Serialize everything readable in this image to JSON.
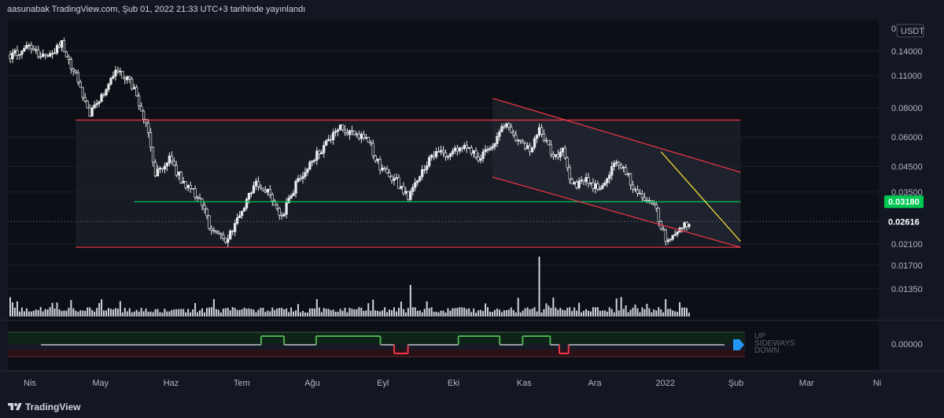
{
  "header": {
    "published": "aasunabak TradingView.com, Şub 01, 2022 21:33 UTC+3 tarihinde yayınlandı"
  },
  "footer": {
    "brand": "TradingView"
  },
  "chart_data": {
    "type": "candlestick",
    "currency": "USDT",
    "x_axis": {
      "labels": [
        "Nis",
        "May",
        "Haz",
        "Tem",
        "Ağu",
        "Eyl",
        "Eki",
        "Kas",
        "Ara",
        "2022",
        "Şub",
        "Mar",
        "Ni"
      ]
    },
    "y_axis": {
      "scale": "log",
      "range": [
        0.0121,
        0.175
      ],
      "ticks": [
        "0.14000",
        "0.11000",
        "0.08000",
        "0.06000",
        "0.04500",
        "0.03500",
        "0.02100",
        "0.01700",
        "0.01350"
      ],
      "top_partial_label": "0"
    },
    "last_price": "0.02616",
    "level_labels": [
      {
        "text": "0.03180",
        "color": "#00c853"
      }
    ],
    "price_path": [
      {
        "t": 0,
        "p": 0.135
      },
      {
        "t": 4,
        "p": 0.145
      },
      {
        "t": 8,
        "p": 0.128
      },
      {
        "t": 11,
        "p": 0.15
      },
      {
        "t": 14,
        "p": 0.11
      },
      {
        "t": 17,
        "p": 0.075
      },
      {
        "t": 20,
        "p": 0.092
      },
      {
        "t": 23,
        "p": 0.118
      },
      {
        "t": 26,
        "p": 0.1
      },
      {
        "t": 29,
        "p": 0.07
      },
      {
        "t": 31,
        "p": 0.042
      },
      {
        "t": 34,
        "p": 0.048
      },
      {
        "t": 37,
        "p": 0.038
      },
      {
        "t": 40,
        "p": 0.034
      },
      {
        "t": 43,
        "p": 0.024
      },
      {
        "t": 46,
        "p": 0.022
      },
      {
        "t": 49,
        "p": 0.027
      },
      {
        "t": 52,
        "p": 0.038
      },
      {
        "t": 55,
        "p": 0.036
      },
      {
        "t": 58,
        "p": 0.027
      },
      {
        "t": 61,
        "p": 0.038
      },
      {
        "t": 64,
        "p": 0.047
      },
      {
        "t": 67,
        "p": 0.055
      },
      {
        "t": 70,
        "p": 0.066
      },
      {
        "t": 73,
        "p": 0.062
      },
      {
        "t": 76,
        "p": 0.06
      },
      {
        "t": 79,
        "p": 0.045
      },
      {
        "t": 82,
        "p": 0.04
      },
      {
        "t": 85,
        "p": 0.033
      },
      {
        "t": 88,
        "p": 0.044
      },
      {
        "t": 91,
        "p": 0.053
      },
      {
        "t": 94,
        "p": 0.05
      },
      {
        "t": 97,
        "p": 0.056
      },
      {
        "t": 100,
        "p": 0.049
      },
      {
        "t": 103,
        "p": 0.056
      },
      {
        "t": 106,
        "p": 0.071
      },
      {
        "t": 108,
        "p": 0.06
      },
      {
        "t": 111,
        "p": 0.052
      },
      {
        "t": 113,
        "p": 0.066
      },
      {
        "t": 116,
        "p": 0.05
      },
      {
        "t": 118,
        "p": 0.052
      },
      {
        "t": 120,
        "p": 0.037
      },
      {
        "t": 123,
        "p": 0.039
      },
      {
        "t": 126,
        "p": 0.036
      },
      {
        "t": 129,
        "p": 0.047
      },
      {
        "t": 131,
        "p": 0.045
      },
      {
        "t": 133,
        "p": 0.036
      },
      {
        "t": 135,
        "p": 0.034
      },
      {
        "t": 138,
        "p": 0.029
      },
      {
        "t": 140,
        "p": 0.022
      },
      {
        "t": 142,
        "p": 0.023
      },
      {
        "t": 145,
        "p": 0.026
      }
    ],
    "volume_spikes": [
      {
        "t": 85.5,
        "v": 1.0
      },
      {
        "t": 113,
        "v": 1.9
      },
      {
        "t": 140,
        "v": 0.55
      },
      {
        "t": 143,
        "v": 0.45
      }
    ],
    "drawings": [
      {
        "kind": "line",
        "color": "#f23645",
        "from": {
          "t": 14,
          "p": 0.071
        },
        "to": {
          "t": 156,
          "p": 0.071
        }
      },
      {
        "kind": "line",
        "color": "#f23645",
        "from": {
          "t": 14,
          "p": 0.0203
        },
        "to": {
          "t": 156,
          "p": 0.0203
        }
      },
      {
        "kind": "line",
        "color": "#00c853",
        "from": {
          "t": 26.5,
          "p": 0.0318
        },
        "to": {
          "t": 156,
          "p": 0.0318
        }
      },
      {
        "kind": "line",
        "color": "#f23645",
        "from": {
          "t": 103,
          "p": 0.088
        },
        "to": {
          "t": 156,
          "p": 0.0425
        }
      },
      {
        "kind": "line",
        "color": "#f23645",
        "from": {
          "t": 103,
          "p": 0.0405
        },
        "to": {
          "t": 156,
          "p": 0.0203
        }
      },
      {
        "kind": "line",
        "color": "#ffeb3b",
        "from": {
          "t": 139,
          "p": 0.052
        },
        "to": {
          "t": 156,
          "p": 0.0215
        }
      }
    ],
    "rectangles": [
      {
        "from": {
          "t": 14,
          "p": 0.071
        },
        "to": {
          "t": 156,
          "p": 0.0203
        }
      }
    ],
    "oscillator": {
      "value_label": "0.00000",
      "legend": [
        "UP",
        "SIDEWAYS",
        "DOWN"
      ],
      "states": [
        {
          "t0": 0,
          "t1": 48,
          "s": 0
        },
        {
          "t0": 48,
          "t1": 53,
          "s": 1
        },
        {
          "t0": 53,
          "t1": 60,
          "s": 0
        },
        {
          "t0": 60,
          "t1": 74,
          "s": 1
        },
        {
          "t0": 74,
          "t1": 77,
          "s": 0
        },
        {
          "t0": 77,
          "t1": 80,
          "s": -1
        },
        {
          "t0": 80,
          "t1": 91,
          "s": 0
        },
        {
          "t0": 91,
          "t1": 100,
          "s": 1
        },
        {
          "t0": 100,
          "t1": 105,
          "s": 0
        },
        {
          "t0": 105,
          "t1": 111,
          "s": 1
        },
        {
          "t0": 111,
          "t1": 113,
          "s": 0
        },
        {
          "t0": 113,
          "t1": 115,
          "s": -1
        },
        {
          "t0": 115,
          "t1": 149,
          "s": 0
        }
      ]
    }
  },
  "colors": {
    "background": "#131722",
    "candle": "#e8eaed",
    "grid": "#1e222d",
    "level_green": "#00c853",
    "level_red": "#f23645",
    "trend_yellow": "#ffeb3b",
    "osc_up": "#4caf50",
    "osc_down": "#f23645",
    "osc_mid": "#9598a1",
    "osc_marker": "#2196f3"
  }
}
